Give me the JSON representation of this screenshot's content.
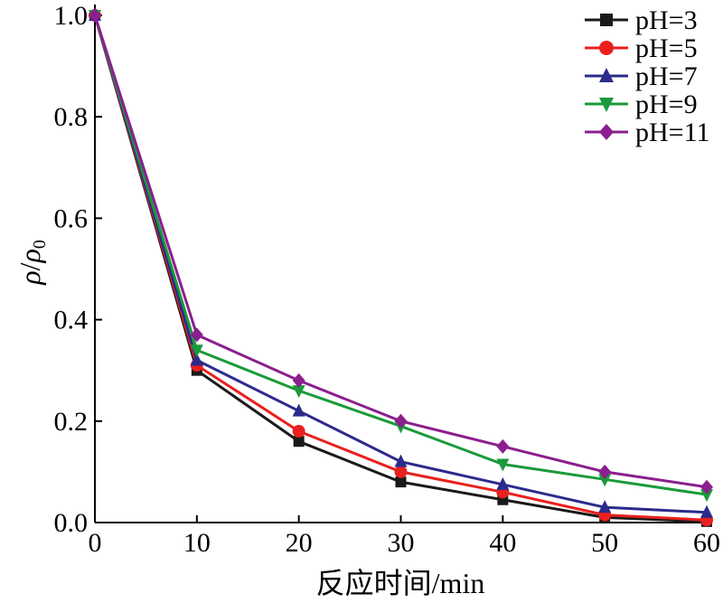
{
  "chart_data": {
    "type": "line",
    "title": "",
    "xlabel": "反应时间/min",
    "ylabel_parts": [
      "ρ",
      "/",
      "ρ",
      "0"
    ],
    "xlim": [
      0,
      60
    ],
    "ylim": [
      0,
      1.0
    ],
    "xticks": [
      "0",
      "10",
      "20",
      "30",
      "40",
      "50",
      "60"
    ],
    "yticks": [
      "0.0",
      "0.2",
      "0.4",
      "0.6",
      "0.8",
      "1.0"
    ],
    "grid": false,
    "legend_position": "top-right",
    "x": [
      0,
      10,
      20,
      30,
      40,
      50,
      60
    ],
    "series": [
      {
        "name": "pH=3",
        "color": "#1a1a1a",
        "marker": "square",
        "values": [
          1.0,
          0.3,
          0.16,
          0.08,
          0.045,
          0.01,
          0.002
        ]
      },
      {
        "name": "pH=5",
        "color": "#e8201e",
        "marker": "circle",
        "values": [
          1.0,
          0.31,
          0.18,
          0.1,
          0.06,
          0.015,
          0.005
        ]
      },
      {
        "name": "pH=7",
        "color": "#2b2b8c",
        "marker": "triangle-up",
        "values": [
          1.0,
          0.32,
          0.22,
          0.12,
          0.075,
          0.03,
          0.02
        ]
      },
      {
        "name": "pH=9",
        "color": "#1a9a3a",
        "marker": "triangle-down",
        "values": [
          1.0,
          0.34,
          0.26,
          0.19,
          0.115,
          0.085,
          0.055
        ]
      },
      {
        "name": "pH=11",
        "color": "#8b1f8f",
        "marker": "diamond",
        "values": [
          1.0,
          0.37,
          0.28,
          0.2,
          0.15,
          0.1,
          0.07
        ]
      }
    ]
  }
}
